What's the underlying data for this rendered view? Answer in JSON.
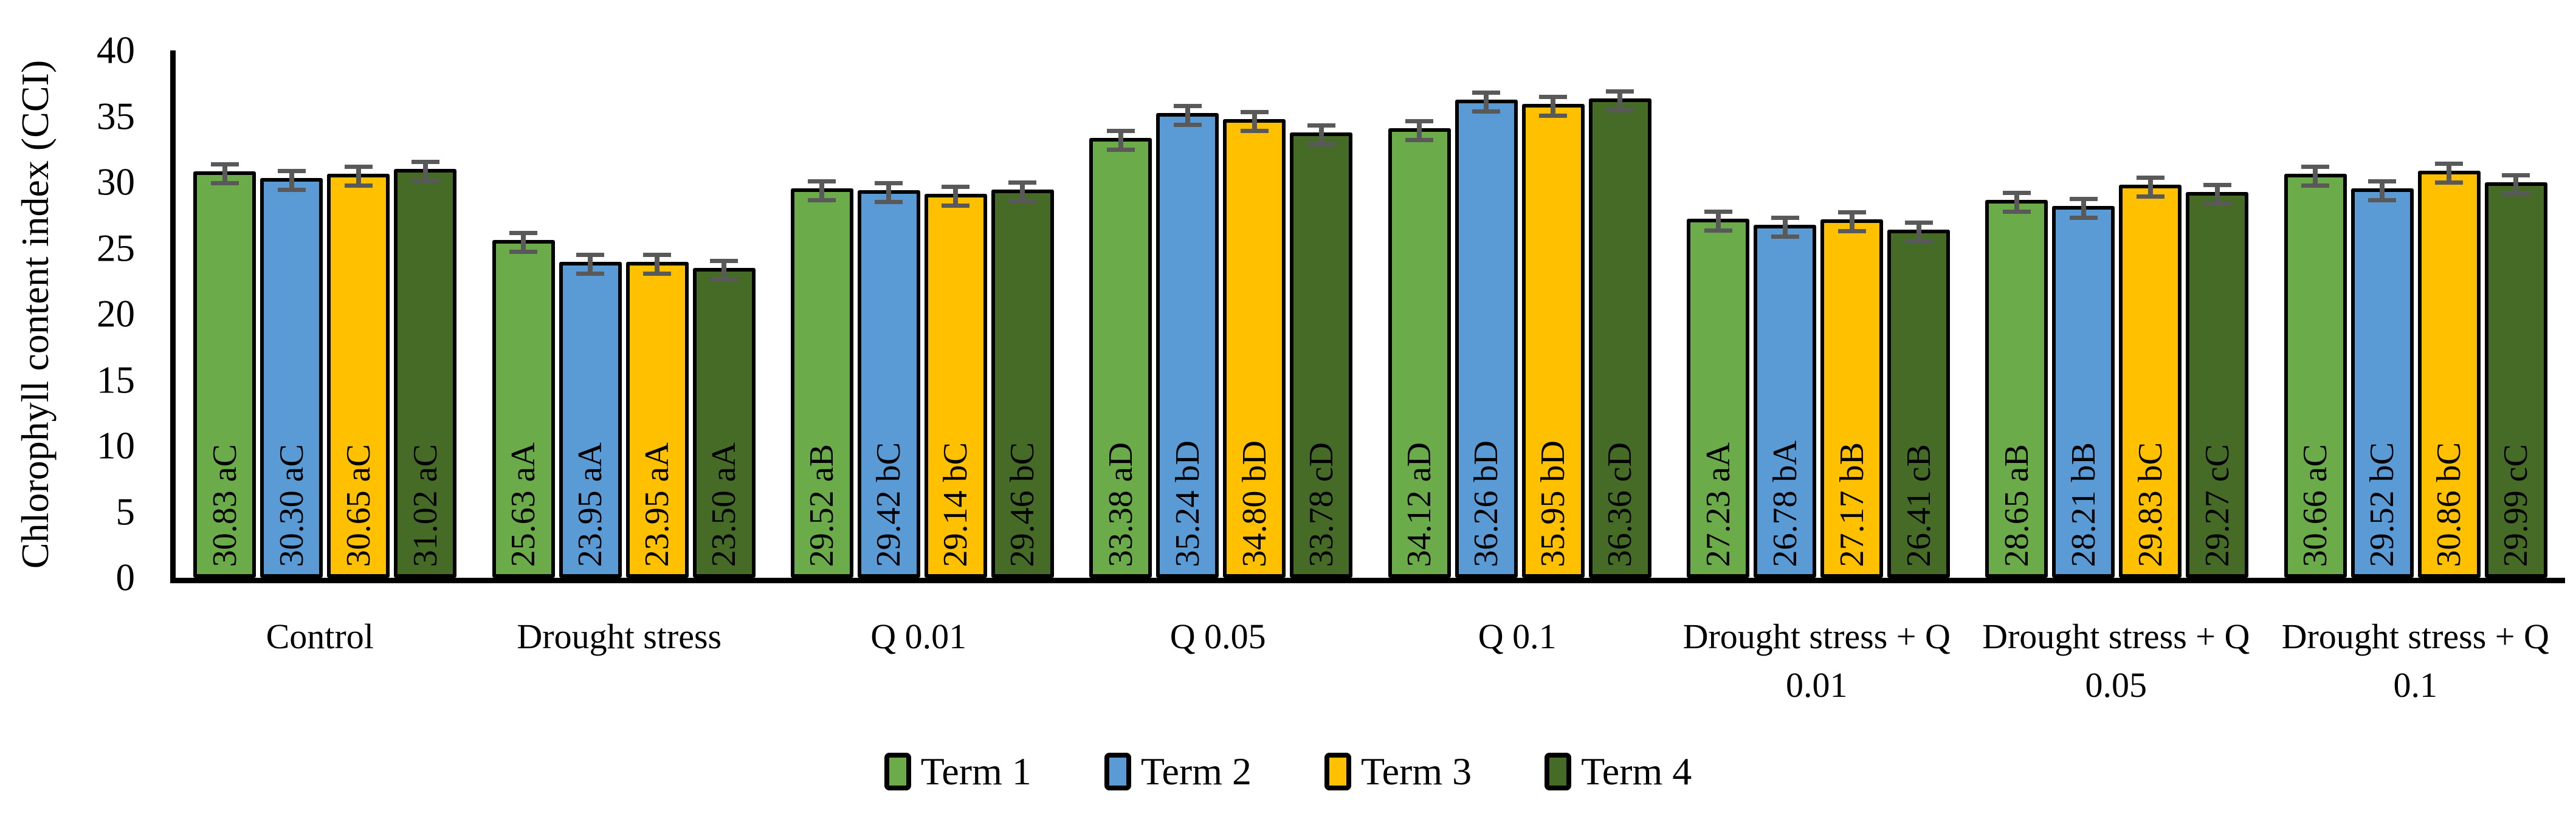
{
  "chart_data": {
    "type": "bar",
    "title": "",
    "y_axis_title": "Chlorophyll content index (CCI)",
    "xlabel": "",
    "ylabel": "Chlorophyll content index (CCI)",
    "ylim": [
      0,
      40
    ],
    "y_ticks": [
      0,
      5,
      10,
      15,
      20,
      25,
      30,
      35,
      40
    ],
    "grid": false,
    "legend_position": "bottom",
    "axis_color": "#000000",
    "categories": [
      "Control",
      "Drought stress",
      "Q 0.01",
      "Q 0.05",
      "Q 0.1",
      "Drought stress + Q 0.01",
      "Drought stress + Q 0.05",
      "Drought stress + Q 0.1"
    ],
    "x_tick_lines": [
      [
        "Control",
        ""
      ],
      [
        "Drought stress",
        ""
      ],
      [
        "Q 0.01",
        ""
      ],
      [
        "Q 0.05",
        ""
      ],
      [
        "Q 0.1",
        ""
      ],
      [
        "Drought stress + Q",
        "0.01"
      ],
      [
        "Drought stress + Q",
        "0.05"
      ],
      [
        "Drought stress + Q",
        "0.1"
      ]
    ],
    "series": [
      {
        "name": "Term 1",
        "color": "#6CAB4A",
        "values": [
          30.83,
          25.63,
          29.52,
          33.38,
          34.12,
          27.23,
          28.65,
          30.66
        ],
        "data_labels": [
          "30.83 aC",
          "25.63 aA",
          "29.52 aB",
          "33.38 aD",
          "34.12 aD",
          "27.23 aA",
          "28.65 aB",
          "30.66 aC"
        ]
      },
      {
        "name": "Term 2",
        "color": "#5B9BD5",
        "values": [
          30.3,
          23.95,
          29.42,
          35.24,
          36.26,
          26.78,
          28.21,
          29.52
        ],
        "data_labels": [
          "30.30 aC",
          "23.95 aA",
          "29.42 bC",
          "35.24 bD",
          "36.26 bD",
          "26.78 bA",
          "28.21 bB",
          "29.52 bC"
        ]
      },
      {
        "name": "Term 3",
        "color": "#FFC000",
        "values": [
          30.65,
          23.95,
          29.14,
          34.8,
          35.95,
          27.17,
          29.83,
          30.86
        ],
        "data_labels": [
          "30.65 aC",
          "23.95 aA",
          "29.14 bC",
          "34.80 bD",
          "35.95 bD",
          "27.17 bB",
          "29.83 bC",
          "30.86 bC"
        ]
      },
      {
        "name": "Term 4",
        "color": "#466B27",
        "values": [
          31.02,
          23.5,
          29.46,
          33.78,
          36.36,
          26.41,
          29.27,
          29.99
        ],
        "data_labels": [
          "31.02 aC",
          "23.50 aA",
          "29.46 bC",
          "33.78 cD",
          "36.36 cD",
          "26.41 cB",
          "29.27 cC",
          "29.99 cC"
        ]
      }
    ],
    "error_bars": {
      "visible": true,
      "approx_half_range": 0.45,
      "color": "#595959"
    }
  }
}
